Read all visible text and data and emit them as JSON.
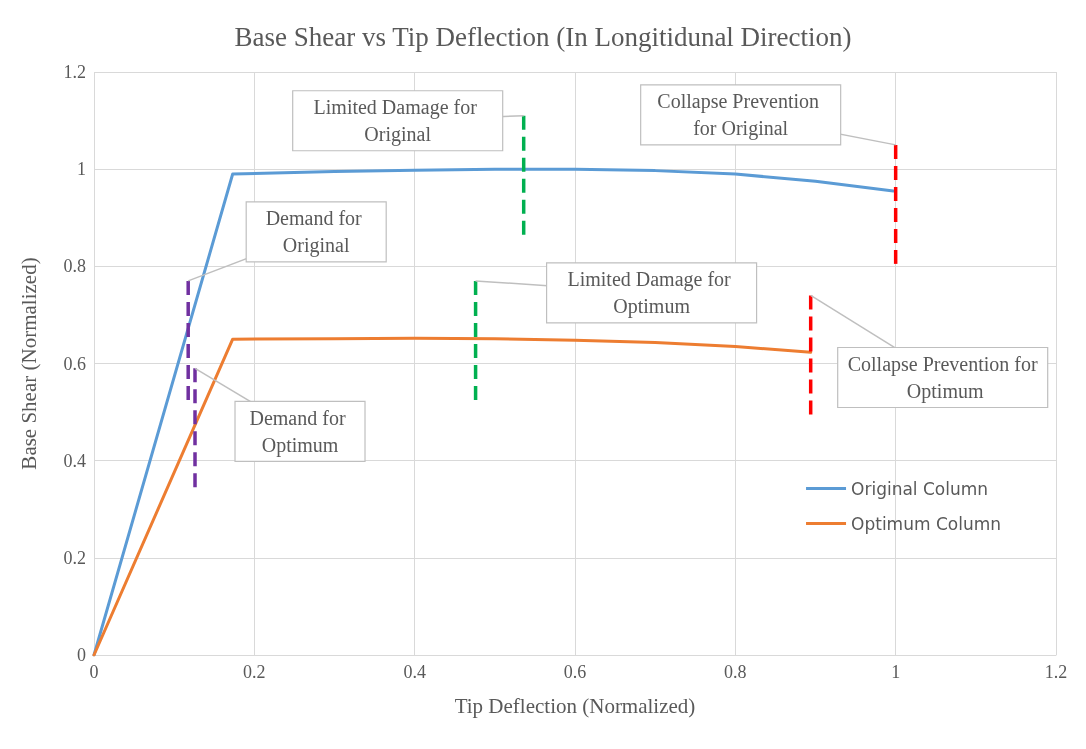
{
  "chart_data": {
    "type": "line",
    "title": "Base Shear vs Tip Deflection (In Longitidunal Direction)",
    "xlabel": "Tip Deflection (Normalized)",
    "ylabel": "Base Shear (Normalized)",
    "series": [
      {
        "name": "Original Column",
        "color": "#5b9bd5",
        "x": [
          0,
          0.173,
          0.3,
          0.4,
          0.5,
          0.6,
          0.7,
          0.8,
          0.9,
          0.997
        ],
        "values": [
          0,
          0.99,
          0.995,
          0.998,
          1.0,
          1.0,
          0.997,
          0.99,
          0.975,
          0.955
        ]
      },
      {
        "name": "Optimum Column",
        "color": "#ed7d31",
        "x": [
          0,
          0.173,
          0.3,
          0.4,
          0.5,
          0.6,
          0.7,
          0.8,
          0.894
        ],
        "values": [
          0,
          0.65,
          0.651,
          0.652,
          0.651,
          0.648,
          0.643,
          0.635,
          0.623
        ]
      },
      {
        "color": "#7030a0",
        "line_style": "dashed",
        "x": [
          0.1175,
          0.1175
        ],
        "values": [
          0.77,
          0.52
        ]
      },
      {
        "color": "#7030a0",
        "line_style": "dashed",
        "x": [
          0.126,
          0.126
        ],
        "values": [
          0.59,
          0.34
        ]
      },
      {
        "color": "#00b050",
        "line_style": "dashed",
        "x": [
          0.536,
          0.536
        ],
        "values": [
          1.11,
          0.86
        ]
      },
      {
        "color": "#00b050",
        "line_style": "dashed",
        "x": [
          0.476,
          0.476
        ],
        "values": [
          0.77,
          0.52
        ]
      },
      {
        "color": "#ff0000",
        "line_style": "dashed",
        "x": [
          1.0,
          1.0
        ],
        "values": [
          1.05,
          0.8
        ]
      },
      {
        "color": "#ff0000",
        "line_style": "dashed",
        "x": [
          0.894,
          0.894
        ],
        "values": [
          0.74,
          0.49
        ]
      }
    ],
    "annotations": [
      {
        "text": "Limited Damage for Original",
        "x": 0.536,
        "y": 1.11
      },
      {
        "text": "Collapse Prevention for Original",
        "x": 1.0,
        "y": 1.05
      },
      {
        "text": "Demand for Original",
        "x": 0.1175,
        "y": 0.77
      },
      {
        "text": "Limited Damage for Optimum",
        "x": 0.476,
        "y": 0.77
      },
      {
        "text": "Collapse Prevention for Optimum",
        "x": 0.894,
        "y": 0.74
      },
      {
        "text": "Demand for Optimum",
        "x": 0.126,
        "y": 0.59
      }
    ],
    "xlim": [
      0,
      1.2
    ],
    "xticks": [
      0,
      0.2,
      0.4,
      0.6,
      0.8,
      1,
      1.2
    ],
    "ylim": [
      0,
      1.2
    ],
    "yticks": [
      0,
      0.2,
      0.4,
      0.6,
      0.8,
      1,
      1.2
    ],
    "grid": true,
    "legend": "right",
    "marker": "none",
    "line_style": "solid"
  }
}
